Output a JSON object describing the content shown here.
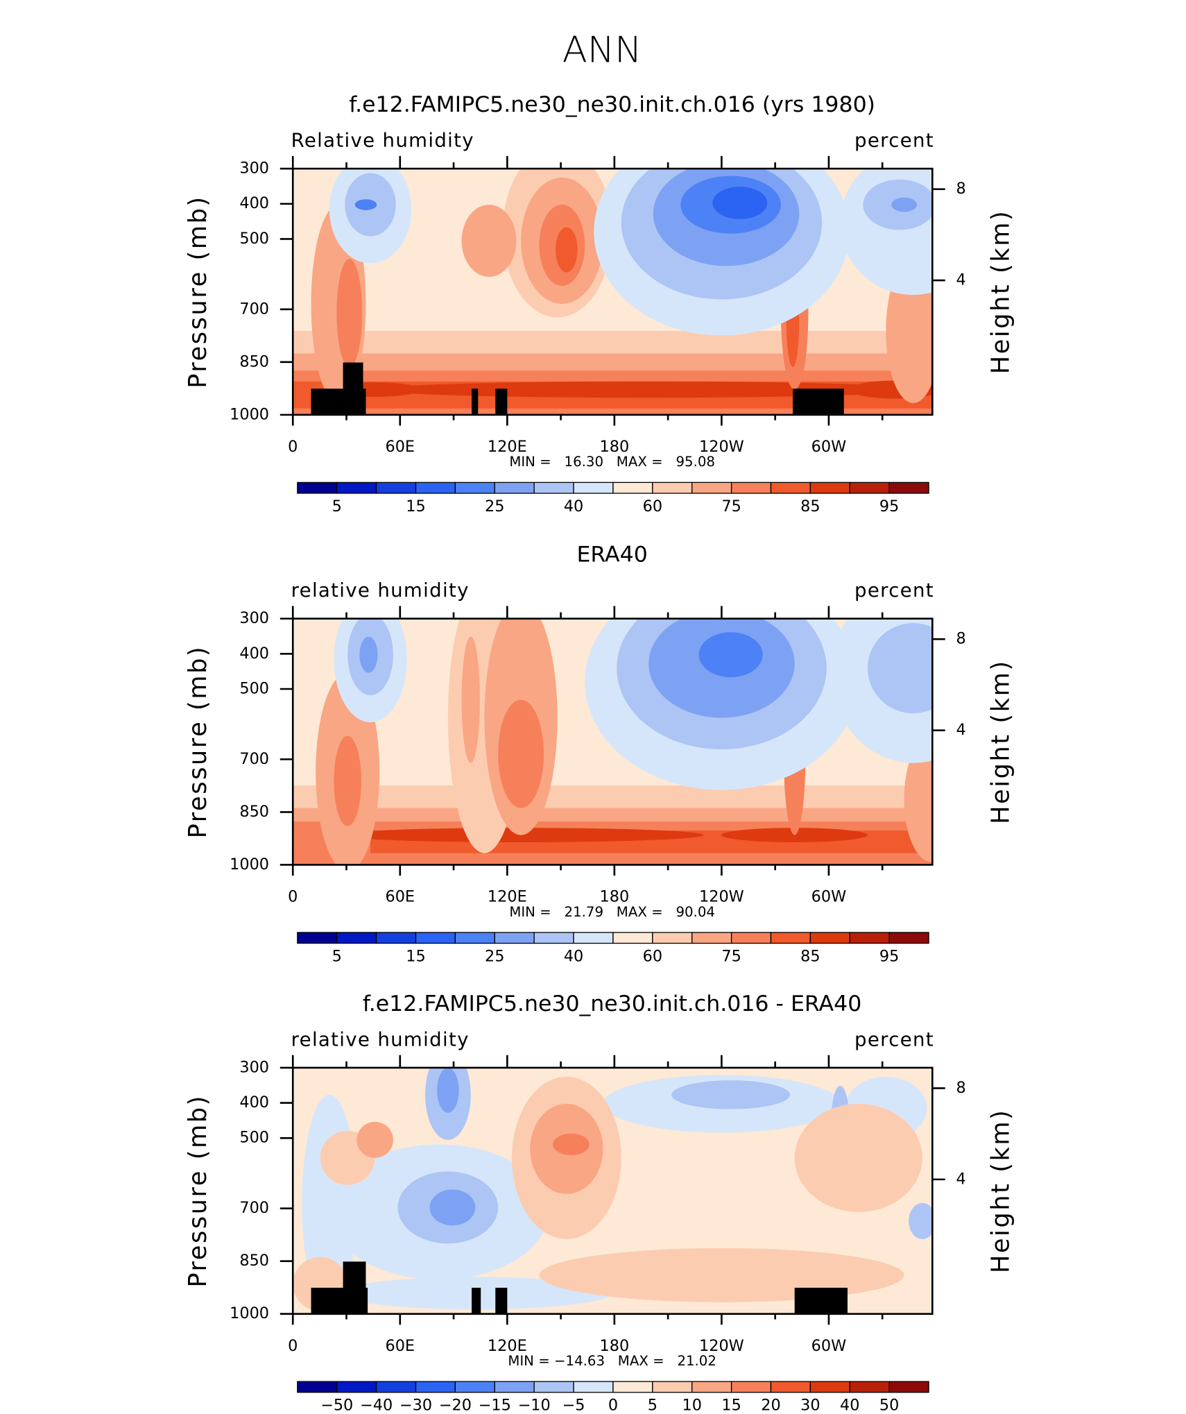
{
  "title": "ANN",
  "chart_data": [
    {
      "type": "contour",
      "title": "f.e12.FAMIPC5.ne30_ne30.init.ch.016 (yrs 1980)",
      "subtitle_left": "Relative humidity",
      "subtitle_right": "percent",
      "ylabel": "Pressure (mb)",
      "y2label": "Height (km)",
      "xlim": [
        0,
        358
      ],
      "xticks": [
        0,
        {
          "value": 60,
          "label": "60E"
        },
        {
          "value": 120,
          "label": "120E"
        },
        180,
        {
          "value": 240,
          "label": "120W"
        },
        {
          "value": 300,
          "label": "60W"
        }
      ],
      "ylim": [
        1000,
        300
      ],
      "yticks": [
        300,
        400,
        500,
        700,
        850,
        1000
      ],
      "y2lim": [
        -1.9,
        8.9
      ],
      "y2ticks": [
        4,
        8
      ],
      "stats": "MIN =   16.30   MAX =   95.08",
      "colorbar": {
        "colors": [
          "#000090",
          "#0019c4",
          "#1540e0",
          "#2b63f2",
          "#4c82f5",
          "#7ea2f3",
          "#adc5f5",
          "#d6e6fa",
          "#fde9d6",
          "#fcccb0",
          "#f9a684",
          "#f6805a",
          "#f05a2c",
          "#dd3a10",
          "#b8200a",
          "#8c0a0a"
        ],
        "levels": [
          5,
          15,
          25,
          40,
          60,
          75,
          85,
          95
        ]
      }
    },
    {
      "type": "contour",
      "title": "ERA40",
      "subtitle_left": "relative humidity",
      "subtitle_right": "percent",
      "ylabel": "Pressure (mb)",
      "y2label": "Height (km)",
      "xlim": [
        0,
        358
      ],
      "xticks": [
        0,
        {
          "value": 60,
          "label": "60E"
        },
        {
          "value": 120,
          "label": "120E"
        },
        180,
        {
          "value": 240,
          "label": "120W"
        },
        {
          "value": 300,
          "label": "60W"
        }
      ],
      "ylim": [
        1000,
        300
      ],
      "yticks": [
        300,
        400,
        500,
        700,
        850,
        1000
      ],
      "y2lim": [
        -1.9,
        8.9
      ],
      "y2ticks": [
        4,
        8
      ],
      "stats": "MIN =   21.79   MAX =   90.04",
      "colorbar": {
        "colors": [
          "#000090",
          "#0019c4",
          "#1540e0",
          "#2b63f2",
          "#4c82f5",
          "#7ea2f3",
          "#adc5f5",
          "#d6e6fa",
          "#fde9d6",
          "#fcccb0",
          "#f9a684",
          "#f6805a",
          "#f05a2c",
          "#dd3a10",
          "#b8200a",
          "#8c0a0a"
        ],
        "levels": [
          5,
          15,
          25,
          40,
          60,
          75,
          85,
          95
        ]
      }
    },
    {
      "type": "contour",
      "title": "f.e12.FAMIPC5.ne30_ne30.init.ch.016 - ERA40",
      "subtitle_left": "relative humidity",
      "subtitle_right": "percent",
      "ylabel": "Pressure (mb)",
      "y2label": "Height (km)",
      "xlim": [
        0,
        358
      ],
      "xticks": [
        0,
        {
          "value": 60,
          "label": "60E"
        },
        {
          "value": 120,
          "label": "120E"
        },
        180,
        {
          "value": 240,
          "label": "120W"
        },
        {
          "value": 300,
          "label": "60W"
        }
      ],
      "ylim": [
        1000,
        300
      ],
      "yticks": [
        300,
        400,
        500,
        700,
        850,
        1000
      ],
      "y2lim": [
        -1.9,
        8.9
      ],
      "y2ticks": [
        4,
        8
      ],
      "stats": "MIN = −14.63   MAX =   21.02",
      "colorbar": {
        "colors": [
          "#000090",
          "#0019c4",
          "#1540e0",
          "#2b63f2",
          "#4c82f5",
          "#7ea2f3",
          "#adc5f5",
          "#d6e6fa",
          "#fde9d6",
          "#fcccb0",
          "#f9a684",
          "#f6805a",
          "#f05a2c",
          "#dd3a10",
          "#b8200a",
          "#8c0a0a"
        ],
        "levels": [
          {
            "value": -50,
            "label": "−50"
          },
          {
            "value": -40,
            "label": "−40"
          },
          {
            "value": -30,
            "label": "−30"
          },
          {
            "value": -20,
            "label": "−20"
          },
          {
            "value": -15,
            "label": "−15"
          },
          {
            "value": -10,
            "label": "−10"
          },
          {
            "value": -5,
            "label": "−5"
          },
          0,
          5,
          10,
          15,
          20,
          30,
          40,
          50
        ]
      }
    }
  ]
}
